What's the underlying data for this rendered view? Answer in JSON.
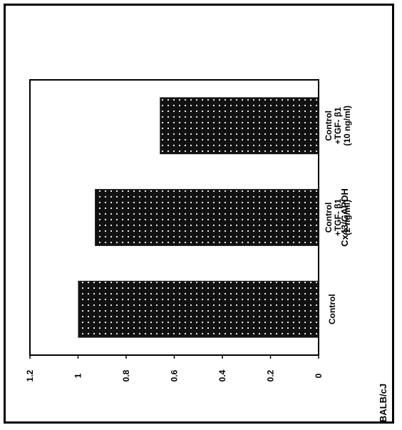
{
  "chart_data": {
    "type": "bar",
    "orientation": "rotated-90-ccw",
    "categories": [
      [
        "Control"
      ],
      [
        "Control",
        "+TGF-  β1",
        "(2 ng/ml)"
      ],
      [
        "Control",
        "+TGF-  β1",
        "(10 ng/ml)"
      ]
    ],
    "values": [
      1.0,
      0.93,
      0.66
    ],
    "ylabel": "Cx43/GAPDH",
    "ylim": [
      0,
      1.2
    ],
    "yticks": [
      0,
      0.2,
      0.4,
      0.6,
      0.8,
      1,
      1.2
    ],
    "ytick_labels": [
      "0",
      "0.2",
      "0.4",
      "0.6",
      "0.8",
      "1",
      "1.2"
    ],
    "grid": false,
    "legend": "none",
    "footer_label": "BALB/cJ",
    "colors": {
      "bar": "#111111",
      "dots": "#ffffff",
      "axis": "#000000"
    }
  }
}
